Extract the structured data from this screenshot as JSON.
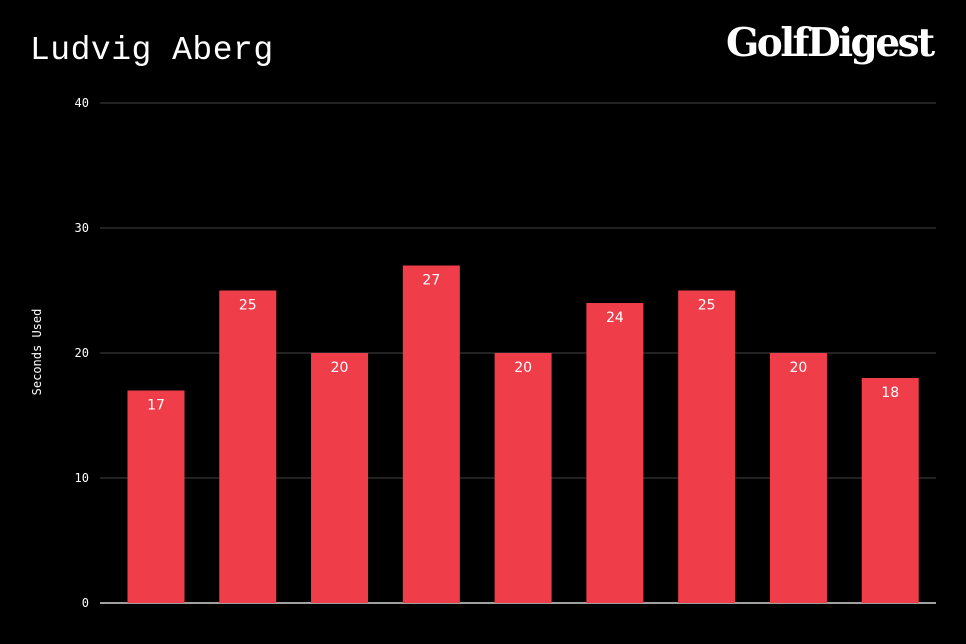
{
  "header": {
    "title": "Ludvig Aberg",
    "logo_text": "GolfDigest"
  },
  "colors": {
    "background": "#000000",
    "bar": "#ef3e4a",
    "gridline": "#444444",
    "axis": "#ffffff",
    "text": "#ffffff"
  },
  "chart_data": {
    "type": "bar",
    "title": "Ludvig Aberg",
    "xlabel": "",
    "ylabel": "Seconds Used",
    "categories": [
      "",
      "",
      "",
      "",
      "",
      "",
      "",
      "",
      ""
    ],
    "values": [
      17,
      25,
      20,
      27,
      20,
      24,
      25,
      20,
      18
    ],
    "ylim": [
      0,
      40
    ],
    "yticks": [
      0,
      10,
      20,
      30,
      40
    ],
    "grid": true,
    "data_labels": true,
    "legend": "none"
  }
}
